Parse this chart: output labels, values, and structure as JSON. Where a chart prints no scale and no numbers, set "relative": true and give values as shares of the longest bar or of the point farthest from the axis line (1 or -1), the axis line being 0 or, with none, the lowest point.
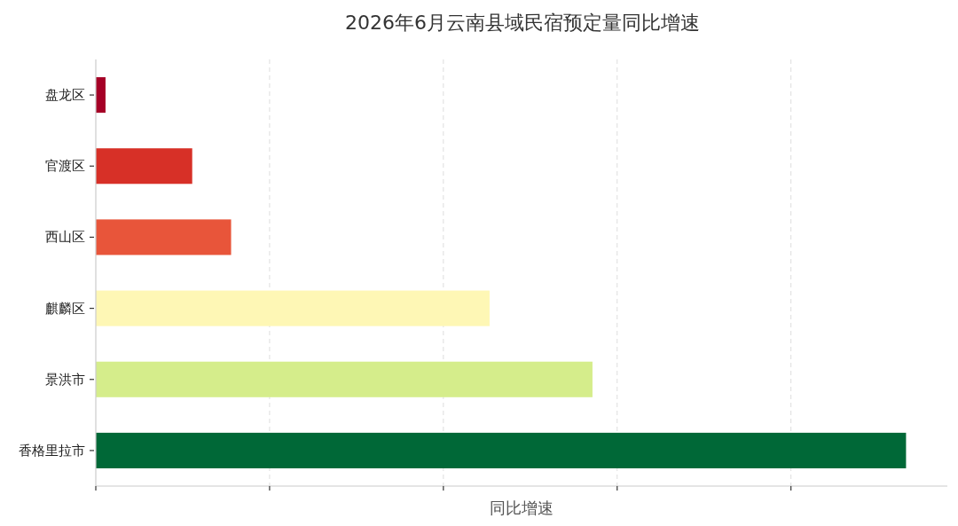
{
  "chart_data": {
    "type": "bar",
    "orientation": "horizontal",
    "relative": true,
    "title": "2026年6月云南县域民宿预定量同比增速",
    "xlabel": "同比增速",
    "categories": [
      "盘龙区",
      "官渡区",
      "西山区",
      "麒麟区",
      "景洪市",
      "香格里拉市"
    ],
    "values": [
      0.012,
      0.119,
      0.167,
      0.486,
      0.613,
      1
    ],
    "colors": [
      "#a50026",
      "#d73027",
      "#e8553a",
      "#fef7b5",
      "#d5ed8b",
      "#006837"
    ],
    "grid": "x"
  }
}
